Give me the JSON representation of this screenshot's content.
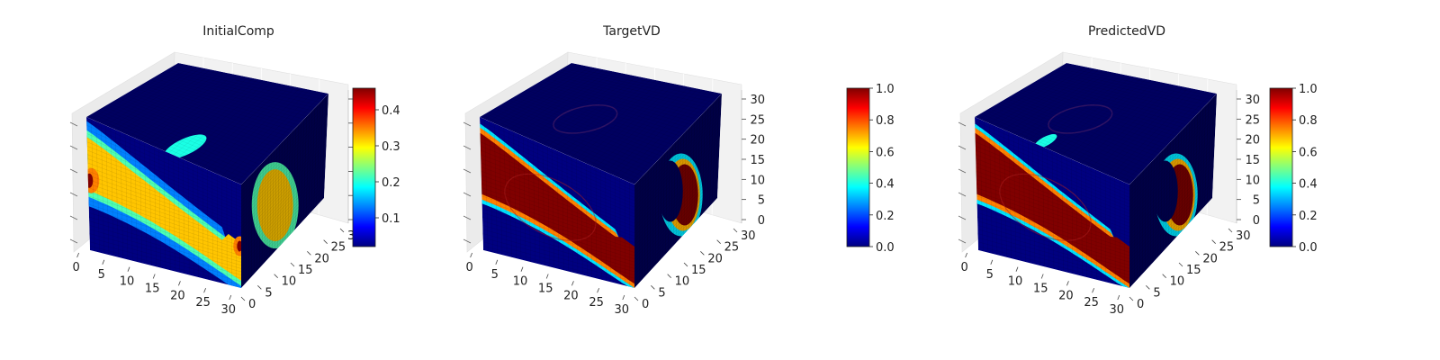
{
  "figure": {
    "background": "#ffffff"
  },
  "chart_data": [
    {
      "type": "heatmap",
      "subtype": "3d-voxel-cube",
      "title": "InitialComp",
      "grid_size": [
        32,
        32,
        32
      ],
      "x_ticks": [
        "0",
        "5",
        "10",
        "15",
        "20",
        "25",
        "30"
      ],
      "y_ticks": [
        "0",
        "5",
        "10",
        "15",
        "20",
        "25",
        "30"
      ],
      "z_ticks": [],
      "colormap": "jet",
      "colorbar": {
        "min": 0.02,
        "max": 0.46,
        "ticks": [
          0.1,
          0.2,
          0.3,
          0.4
        ],
        "tick_labels": [
          "0.1",
          "0.2",
          "0.3",
          "0.4"
        ]
      },
      "field": {
        "background": 0.02,
        "body": 0.32,
        "peak": 0.46,
        "hotspot": 0.46
      }
    },
    {
      "type": "heatmap",
      "subtype": "3d-voxel-cube",
      "title": "TargetVD",
      "grid_size": [
        32,
        32,
        32
      ],
      "x_ticks": [
        "0",
        "5",
        "10",
        "15",
        "20",
        "25",
        "30"
      ],
      "y_ticks": [
        "0",
        "5",
        "10",
        "15",
        "20",
        "25",
        "30"
      ],
      "z_ticks": [
        "0",
        "5",
        "10",
        "15",
        "20",
        "25",
        "30"
      ],
      "colormap": "jet",
      "colorbar": {
        "min": 0.0,
        "max": 1.0,
        "ticks": [
          0.0,
          0.2,
          0.4,
          0.6,
          0.8,
          1.0
        ],
        "tick_labels": [
          "0.0",
          "0.2",
          "0.4",
          "0.6",
          "0.8",
          "1.0"
        ]
      },
      "field": {
        "background": 0.0,
        "body": 1.0,
        "edge": 0.45
      }
    },
    {
      "type": "heatmap",
      "subtype": "3d-voxel-cube",
      "title": "PredictedVD",
      "grid_size": [
        32,
        32,
        32
      ],
      "x_ticks": [
        "0",
        "5",
        "10",
        "15",
        "20",
        "25",
        "30"
      ],
      "y_ticks": [
        "0",
        "5",
        "10",
        "15",
        "20",
        "25",
        "30"
      ],
      "z_ticks": [
        "0",
        "5",
        "10",
        "15",
        "20",
        "25",
        "30"
      ],
      "colormap": "jet",
      "colorbar": {
        "min": 0.0,
        "max": 1.0,
        "ticks": [
          0.0,
          0.2,
          0.4,
          0.6,
          0.8,
          1.0
        ],
        "tick_labels": [
          "0.0",
          "0.2",
          "0.4",
          "0.6",
          "0.8",
          "1.0"
        ]
      },
      "field": {
        "background": 0.0,
        "body": 1.0,
        "edge": 0.45
      }
    }
  ]
}
